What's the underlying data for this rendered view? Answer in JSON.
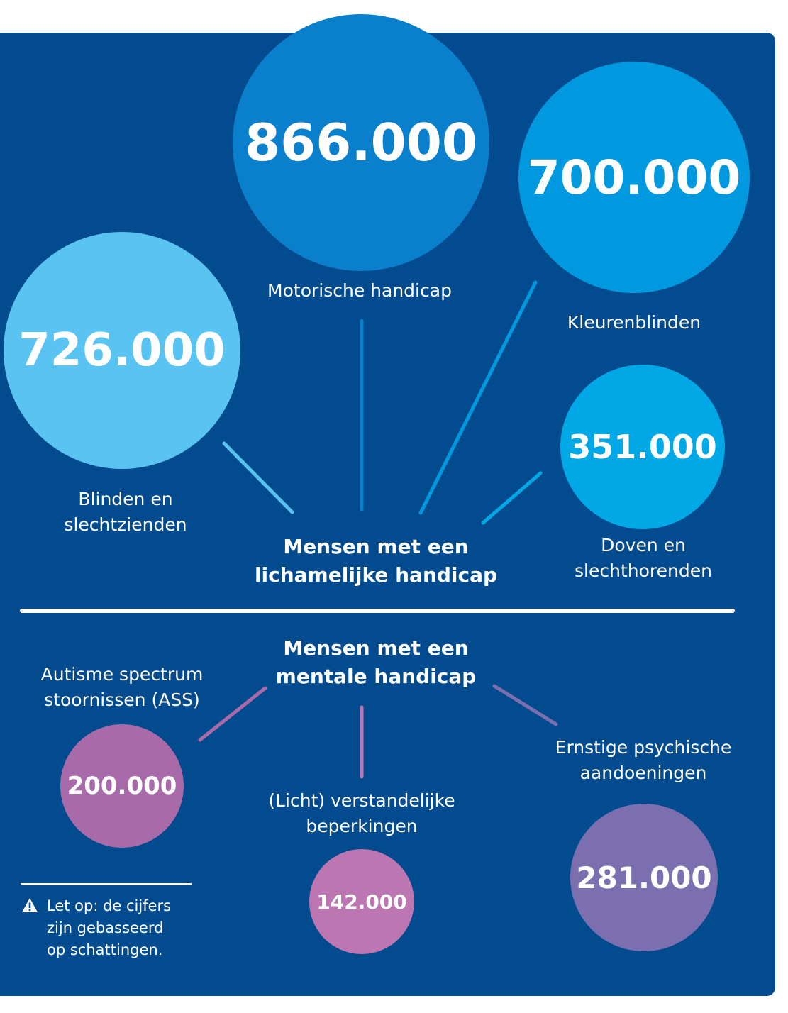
{
  "colors": {
    "panel": "#034b8f",
    "circle_motor": "#0a7fcb",
    "circle_color": "#0099df",
    "circle_blind": "#59c4f2",
    "circle_deaf": "#00a8e6",
    "circle_asd": "#a86aa8",
    "circle_id": "#bc77b2",
    "circle_psych": "#7c6fb0",
    "line_motor": "#0a7fcb",
    "line_color": "#0099df",
    "line_blind": "#59c4f2",
    "line_deaf": "#00a8e6",
    "line_asd": "#a86aa8",
    "line_id": "#bc77b2",
    "line_psych": "#7c6fb0"
  },
  "physical": {
    "heading": [
      "Mensen met een",
      "lichamelijke handicap"
    ],
    "groups": {
      "motor": {
        "value": "866.000",
        "label": [
          "Motorische handicap"
        ]
      },
      "color": {
        "value": "700.000",
        "label": [
          "Kleurenblinden"
        ]
      },
      "blind": {
        "value": "726.000",
        "label": [
          "Blinden en",
          "slechtzienden"
        ]
      },
      "deaf": {
        "value": "351.000",
        "label": [
          "Doven en",
          "slechthorenden"
        ]
      }
    }
  },
  "mental": {
    "heading": [
      "Mensen met een",
      "mentale handicap"
    ],
    "groups": {
      "asd": {
        "value": "200.000",
        "label": [
          "Autisme spectrum",
          "stoornissen (ASS)"
        ]
      },
      "id": {
        "value": "142.000",
        "label": [
          "(Licht) verstandelijke",
          "beperkingen"
        ]
      },
      "psych": {
        "value": "281.000",
        "label": [
          "Ernstige psychische",
          "aandoeningen"
        ]
      }
    }
  },
  "note": {
    "icon": "warning-icon",
    "lines": [
      "Let op: de cijfers",
      "zijn gebasseerd",
      "op schattingen."
    ]
  }
}
